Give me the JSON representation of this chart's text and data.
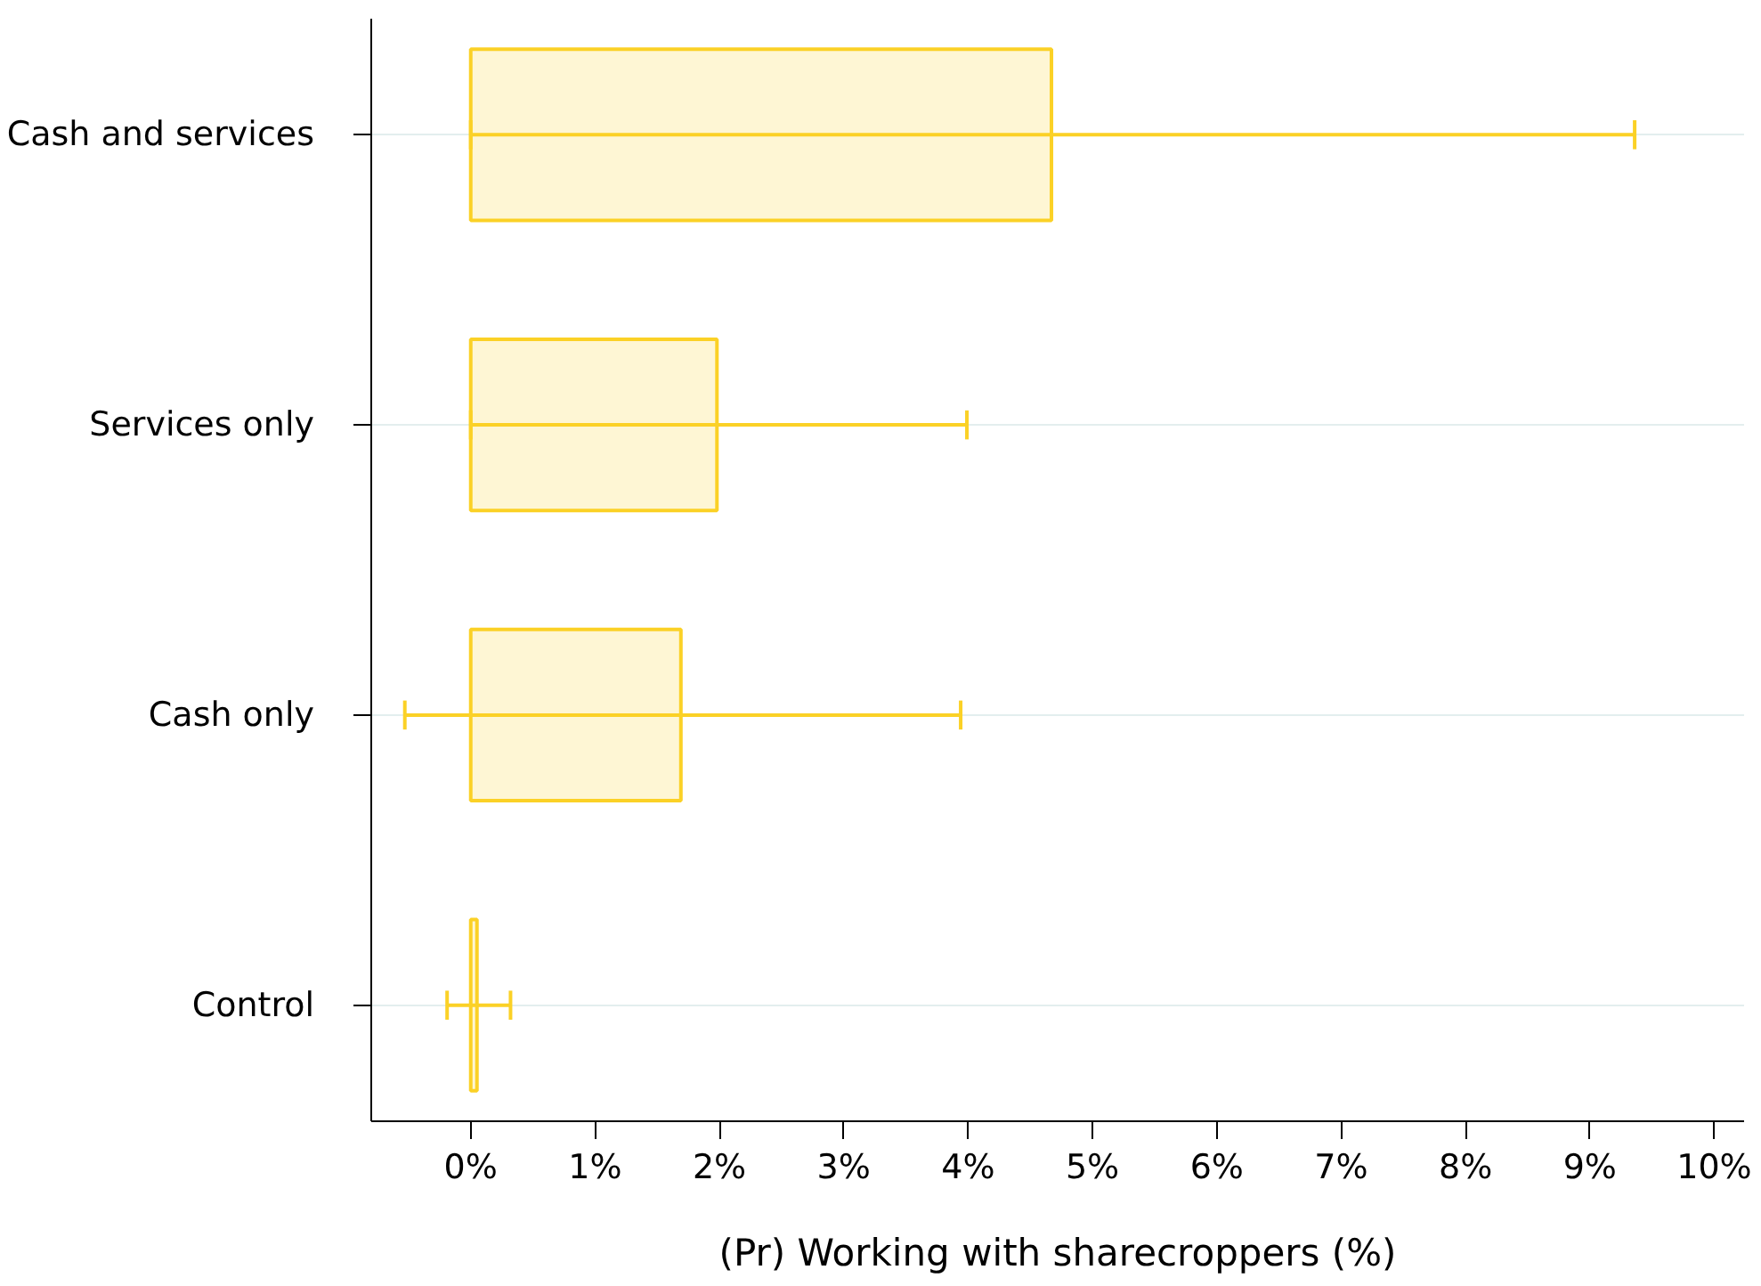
{
  "chart_data": {
    "type": "bar",
    "orientation": "horizontal",
    "xlabel": "(Pr) Working with sharecroppers (%)",
    "categories": [
      "Cash and services",
      "Services only",
      "Cash only",
      "Control"
    ],
    "values": [
      4.67,
      1.98,
      1.69,
      0.05
    ],
    "errors": [
      [
        0.0,
        9.36
      ],
      [
        0.0,
        3.99
      ],
      [
        -0.53,
        3.94
      ],
      [
        -0.19,
        0.32
      ]
    ],
    "color": "#fbd126",
    "xlim": [
      -0.8,
      10.24
    ],
    "xticks": [
      {
        "value": 0,
        "label": "0%"
      },
      {
        "value": 1,
        "label": "1%"
      },
      {
        "value": 2,
        "label": "2%"
      },
      {
        "value": 3,
        "label": "3%"
      },
      {
        "value": 4,
        "label": "4%"
      },
      {
        "value": 5,
        "label": "5%"
      },
      {
        "value": 6,
        "label": "6%"
      },
      {
        "value": 7,
        "label": "7%"
      },
      {
        "value": 8,
        "label": "8%"
      },
      {
        "value": 9,
        "label": "9%"
      },
      {
        "value": 10,
        "label": "10%"
      }
    ],
    "grid": "y"
  }
}
